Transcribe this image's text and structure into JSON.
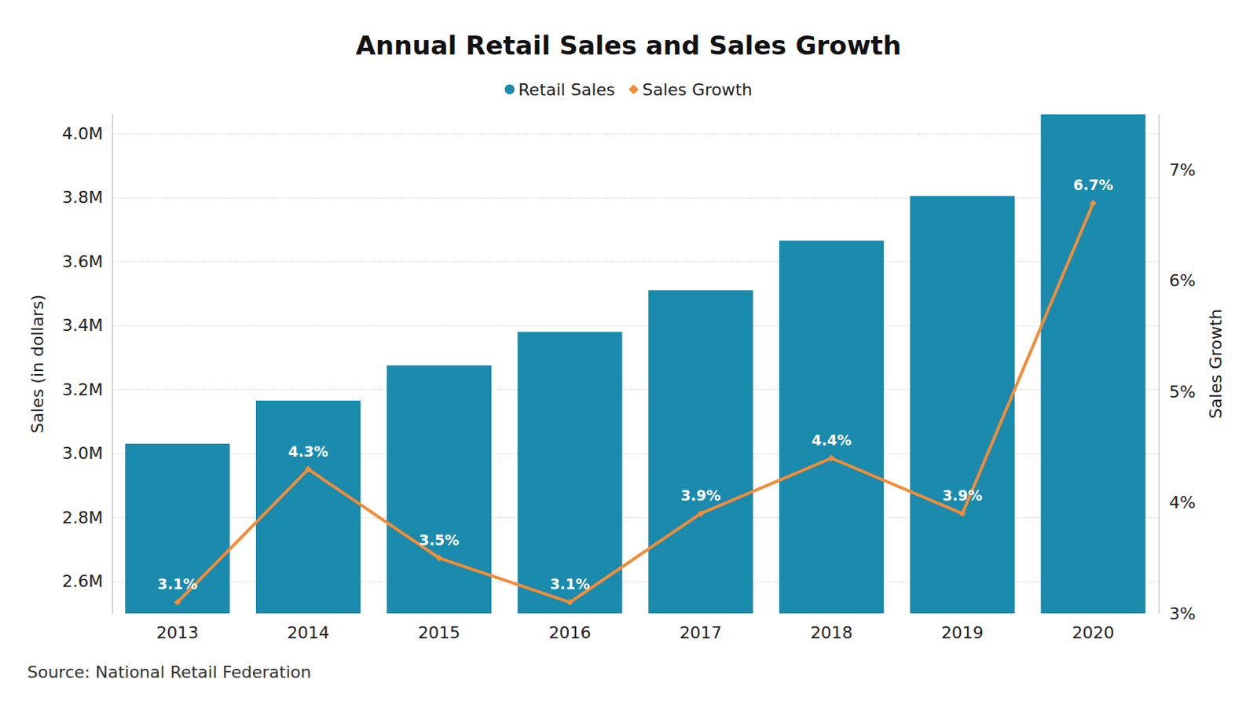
{
  "chart_data": {
    "type": "bar",
    "title": "Annual Retail Sales and Sales Growth",
    "categories": [
      "2013",
      "2014",
      "2015",
      "2016",
      "2017",
      "2018",
      "2019",
      "2020"
    ],
    "series": [
      {
        "name": "Retail Sales",
        "type": "bar",
        "color": "#1a8aad",
        "values": [
          3030000,
          3165000,
          3275000,
          3380000,
          3510000,
          3665000,
          3805000,
          4060000
        ]
      },
      {
        "name": "Sales Growth",
        "type": "line",
        "color": "#f28c38",
        "axis": "y2",
        "marker": "diamond",
        "data_labels": true,
        "values": [
          3.1,
          4.3,
          3.5,
          3.1,
          3.9,
          4.4,
          3.9,
          6.7
        ],
        "value_labels": [
          "3.1%",
          "4.3%",
          "3.5%",
          "3.1%",
          "3.9%",
          "4.4%",
          "3.9%",
          "6.7%"
        ]
      }
    ],
    "ylabel": "Sales (in dollars)",
    "y2label": "Sales Growth",
    "ylim": [
      2500000,
      4060000
    ],
    "yticks": [
      {
        "value": 2600000,
        "label": "2.6M"
      },
      {
        "value": 2800000,
        "label": "2.8M"
      },
      {
        "value": 3000000,
        "label": "3.0M"
      },
      {
        "value": 3200000,
        "label": "3.2M"
      },
      {
        "value": 3400000,
        "label": "3.4M"
      },
      {
        "value": 3600000,
        "label": "3.6M"
      },
      {
        "value": 3800000,
        "label": "3.8M"
      },
      {
        "value": 4000000,
        "label": "4.0M"
      }
    ],
    "y2lim": [
      3,
      7.5
    ],
    "y2ticks": [
      {
        "value": 3,
        "label": "3%"
      },
      {
        "value": 4,
        "label": "4%"
      },
      {
        "value": 5,
        "label": "5%"
      },
      {
        "value": 6,
        "label": "6%"
      },
      {
        "value": 7,
        "label": "7%"
      }
    ],
    "grid": true,
    "legend": "top",
    "source": "Source: National Retail Federation"
  }
}
